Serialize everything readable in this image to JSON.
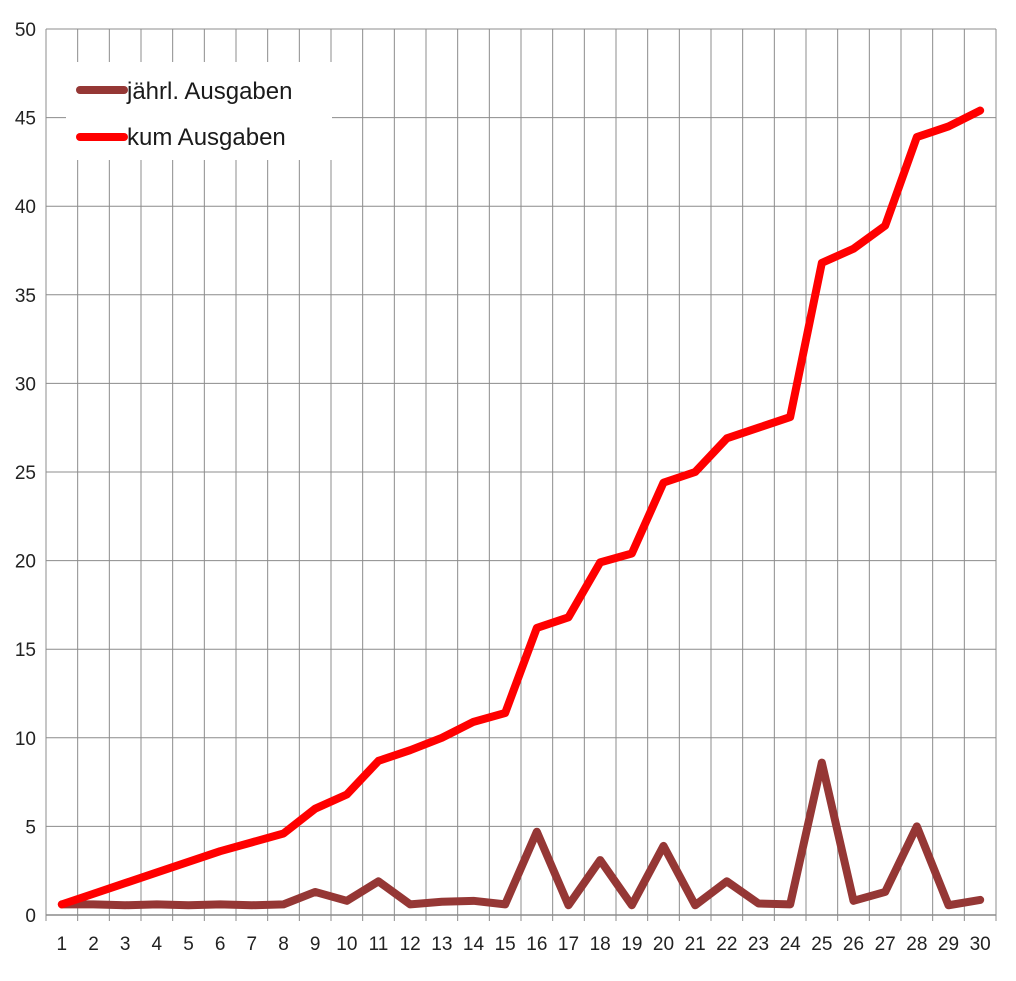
{
  "chart_data": {
    "type": "line",
    "title": "",
    "xlabel": "",
    "ylabel": "",
    "x": [
      1,
      2,
      3,
      4,
      5,
      6,
      7,
      8,
      9,
      10,
      11,
      12,
      13,
      14,
      15,
      16,
      17,
      18,
      19,
      20,
      21,
      22,
      23,
      24,
      25,
      26,
      27,
      28,
      29,
      30
    ],
    "ylim": [
      0,
      50
    ],
    "yticks": [
      0,
      5,
      10,
      15,
      20,
      25,
      30,
      35,
      40,
      45,
      50
    ],
    "grid": true,
    "legend_position": "top-left",
    "series": [
      {
        "name": "jährl. Ausgaben",
        "color": "#953735",
        "values": [
          0.6,
          0.6,
          0.55,
          0.6,
          0.55,
          0.6,
          0.55,
          0.6,
          1.3,
          0.8,
          1.9,
          0.6,
          0.75,
          0.8,
          0.6,
          4.7,
          0.55,
          3.1,
          0.55,
          3.9,
          0.55,
          1.9,
          0.65,
          0.6,
          8.6,
          0.8,
          1.3,
          5.0,
          0.55,
          0.85
        ]
      },
      {
        "name": "kum Ausgaben",
        "color": "#ff0000",
        "values": [
          0.6,
          1.2,
          1.8,
          2.4,
          3.0,
          3.6,
          4.1,
          4.6,
          6.0,
          6.8,
          8.7,
          9.3,
          10.0,
          10.9,
          11.4,
          16.2,
          16.8,
          19.9,
          20.4,
          24.4,
          25.0,
          26.9,
          27.5,
          28.1,
          36.8,
          37.6,
          38.9,
          43.9,
          44.5,
          45.4
        ]
      }
    ]
  }
}
